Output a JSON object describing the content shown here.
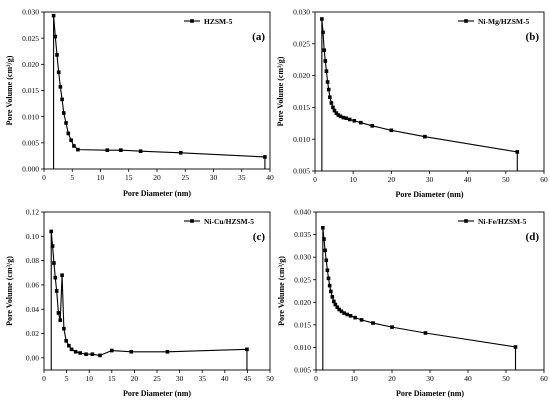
{
  "chart_data": [
    {
      "type": "line",
      "panel_label": "(a)",
      "xlabel": "Pore Diameter (nm)",
      "ylabel": "Pore Volume (cm³/g)",
      "xlim": [
        0,
        40
      ],
      "ylim": [
        0,
        0.03
      ],
      "xticks": [
        0,
        5,
        10,
        15,
        20,
        25,
        30,
        35,
        40
      ],
      "yticks": [
        0.0,
        0.005,
        0.01,
        0.015,
        0.02,
        0.025,
        0.03
      ],
      "ytick_labels": [
        "0.000",
        "0.005",
        "0.010",
        "0.015",
        "0.020",
        "0.025",
        "0.030"
      ],
      "legend_position": "top-right",
      "series": [
        {
          "name": "HZSM-5",
          "x": [
            1.7,
            2.0,
            2.3,
            2.6,
            2.9,
            3.2,
            3.5,
            3.9,
            4.3,
            4.8,
            5.3,
            6.0,
            11.2,
            13.6,
            17.1,
            24.2,
            39.1
          ],
          "y": [
            0.0293,
            0.0253,
            0.0218,
            0.0185,
            0.0157,
            0.0133,
            0.0107,
            0.0088,
            0.0068,
            0.0055,
            0.0044,
            0.0037,
            0.0036,
            0.0036,
            0.0034,
            0.0031,
            0.0023
          ]
        }
      ]
    },
    {
      "type": "line",
      "panel_label": "(b)",
      "xlabel": "Pore Diameter (nm)",
      "ylabel": "Pore Volume (cm³/g)",
      "xlim": [
        0,
        60
      ],
      "ylim": [
        0.005,
        0.03
      ],
      "xticks": [
        0,
        10,
        20,
        30,
        40,
        50,
        60
      ],
      "yticks": [
        0.005,
        0.01,
        0.015,
        0.02,
        0.025,
        0.03
      ],
      "ytick_labels": [
        "0.005",
        "0.010",
        "0.015",
        "0.020",
        "0.025",
        "0.030"
      ],
      "legend_position": "top-right",
      "series": [
        {
          "name": "Ni-Mg/HZSM-5",
          "x": [
            1.8,
            2.1,
            2.4,
            2.7,
            3.0,
            3.3,
            3.6,
            3.9,
            4.3,
            4.7,
            5.1,
            5.6,
            6.1,
            6.7,
            7.4,
            8.2,
            9.1,
            10.3,
            12.0,
            15.0,
            20.0,
            28.8,
            53.0
          ],
          "y": [
            0.0289,
            0.0268,
            0.024,
            0.0223,
            0.0207,
            0.019,
            0.0178,
            0.0166,
            0.0157,
            0.015,
            0.0145,
            0.0141,
            0.0138,
            0.0136,
            0.0134,
            0.0133,
            0.0131,
            0.0129,
            0.0126,
            0.0121,
            0.0114,
            0.0104,
            0.008
          ]
        }
      ]
    },
    {
      "type": "line",
      "panel_label": "(c)",
      "xlabel": "Pore Diameter (nm)",
      "ylabel": "Pore Volume (cm³/g)",
      "xlim": [
        0,
        50
      ],
      "ylim": [
        -0.01,
        0.12
      ],
      "xticks": [
        0,
        5,
        10,
        15,
        20,
        25,
        30,
        35,
        40,
        45,
        50
      ],
      "yticks": [
        0.0,
        0.02,
        0.04,
        0.06,
        0.08,
        0.1,
        0.12
      ],
      "ytick_labels": [
        "0.00",
        "0.02",
        "0.04",
        "0.06",
        "0.08",
        "0.10",
        "0.12"
      ],
      "legend_position": "top-right",
      "series": [
        {
          "name": "Ni-Cu/HZSM-5",
          "x": [
            1.6,
            1.9,
            2.2,
            2.5,
            2.8,
            3.2,
            3.6,
            4.0,
            4.4,
            4.9,
            5.5,
            6.1,
            7.0,
            8.0,
            9.3,
            10.7,
            12.4,
            15.0,
            19.3,
            27.3,
            44.9
          ],
          "y": [
            0.104,
            0.092,
            0.078,
            0.066,
            0.055,
            0.037,
            0.031,
            0.068,
            0.024,
            0.014,
            0.01,
            0.007,
            0.005,
            0.004,
            0.003,
            0.003,
            0.002,
            0.006,
            0.005,
            0.005,
            0.007
          ],
          "note": ""
        }
      ]
    },
    {
      "type": "line",
      "panel_label": "(d)",
      "xlabel": "Pore Diameter (nm)",
      "ylabel": "Pore Volume (cm³/g)",
      "xlim": [
        0,
        60
      ],
      "ylim": [
        0.005,
        0.04
      ],
      "xticks": [
        0,
        10,
        20,
        30,
        40,
        50,
        60
      ],
      "yticks": [
        0.005,
        0.01,
        0.015,
        0.02,
        0.025,
        0.03,
        0.035,
        0.04
      ],
      "ytick_labels": [
        "0.005",
        "0.010",
        "0.015",
        "0.020",
        "0.025",
        "0.030",
        "0.035",
        "0.040"
      ],
      "legend_position": "top-right",
      "series": [
        {
          "name": "Ni-Fe/HZSM-5",
          "x": [
            1.8,
            2.1,
            2.4,
            2.7,
            3.0,
            3.3,
            3.6,
            3.9,
            4.3,
            4.7,
            5.1,
            5.6,
            6.1,
            6.7,
            7.4,
            8.2,
            9.1,
            10.3,
            12.0,
            15.0,
            20.0,
            28.8,
            52.5
          ],
          "y": [
            0.0365,
            0.034,
            0.0315,
            0.0293,
            0.0271,
            0.0253,
            0.0237,
            0.0224,
            0.0212,
            0.0202,
            0.0195,
            0.0189,
            0.0184,
            0.018,
            0.0176,
            0.0173,
            0.017,
            0.0166,
            0.0161,
            0.0154,
            0.0145,
            0.0132,
            0.0101
          ]
        }
      ]
    }
  ]
}
